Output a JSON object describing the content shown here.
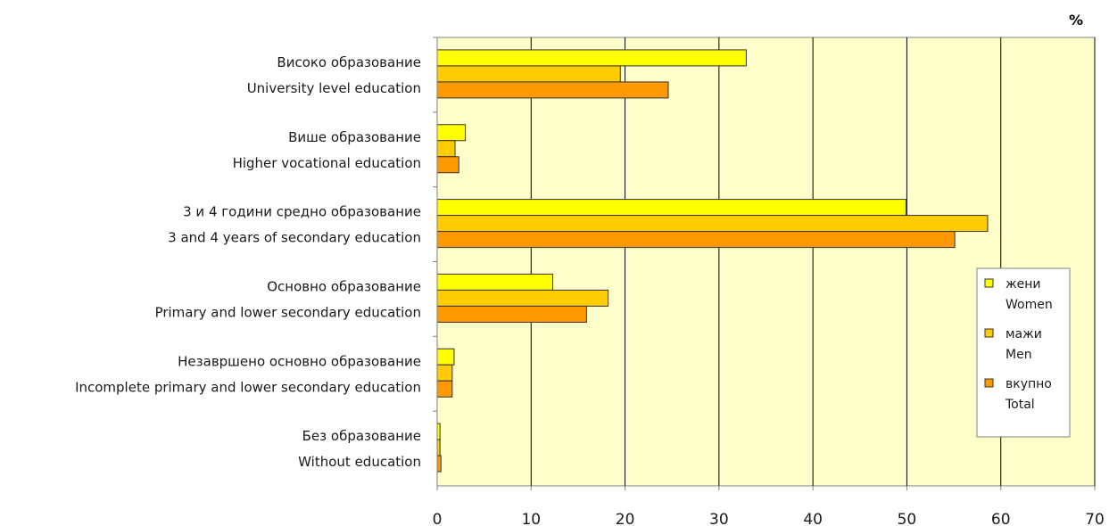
{
  "chart_data": {
    "type": "bar",
    "orientation": "horizontal",
    "unit": "%",
    "categories": [
      {
        "mk": "Високо образование",
        "en": "University level education"
      },
      {
        "mk": "Више образование",
        "en": "Higher vocational education"
      },
      {
        "mk": "3 и 4 години средно образование",
        "en": "3 and 4 years of secondary education"
      },
      {
        "mk": "Основно образование",
        "en": "Primary and lower secondary education"
      },
      {
        "mk": "Незавршено основно образование",
        "en": "Incomplete primary and lower secondary education"
      },
      {
        "mk": "Без образование",
        "en": "Without education"
      }
    ],
    "series": [
      {
        "name": "жени",
        "name_en": "Women",
        "color": "#FFFF00",
        "values": [
          32.9,
          3.0,
          49.9,
          12.3,
          1.8,
          0.3
        ]
      },
      {
        "name": "мажи",
        "name_en": "Men",
        "color": "#FFCC00",
        "values": [
          19.5,
          1.9,
          58.6,
          18.2,
          1.6,
          0.3
        ]
      },
      {
        "name": "вкупно",
        "name_en": "Total",
        "color": "#FF9900",
        "values": [
          24.6,
          2.3,
          55.1,
          15.9,
          1.6,
          0.4
        ]
      }
    ],
    "xlim": [
      0,
      70
    ],
    "xticks": [
      0,
      10,
      20,
      30,
      40,
      50,
      60,
      70
    ],
    "grid": true,
    "plot_background": "#FFFFCC",
    "legend_position": "right"
  }
}
